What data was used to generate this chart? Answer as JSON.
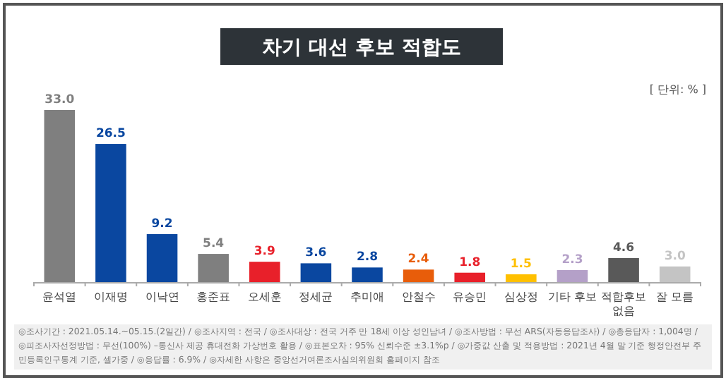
{
  "chart_data": {
    "type": "bar",
    "title": "차기 대선 후보 적합도",
    "categories": [
      "윤석열",
      "이재명",
      "이낙연",
      "홍준표",
      "오세훈",
      "정세균",
      "추미애",
      "안철수",
      "유승민",
      "심상정",
      "기타 후보",
      "적합후보 없음",
      "잘 모름"
    ],
    "values": [
      33.0,
      26.5,
      9.2,
      5.4,
      3.9,
      3.6,
      2.8,
      2.4,
      1.8,
      1.5,
      2.3,
      4.6,
      3.0
    ],
    "value_labels": [
      "33.0",
      "26.5",
      "9.2",
      "5.4",
      "3.9",
      "3.6",
      "2.8",
      "2.4",
      "1.8",
      "1.5",
      "2.3",
      "4.6",
      "3.0"
    ],
    "colors": [
      "#7f7f7f",
      "#0a47a0",
      "#0a47a0",
      "#7f7f7f",
      "#e8202a",
      "#0a47a0",
      "#0a47a0",
      "#e85d0a",
      "#e8202a",
      "#ffc000",
      "#b4a0c8",
      "#595959",
      "#c4c4c4"
    ],
    "annotations": [
      "[ 단위: % ]",
      "◎조사기간 : 2021.05.14.~05.15.(2일간) / ◎조사지역 : 전국 / ◎조사대상 : 전국 거주 만 18세 이상 성인남녀 / ◎조사방법 : 무선 ARS(자동응답조사) / ◎총응답자 : 1,004명 / ◎피조사자선정방법 : 무선(100%) –통신사 제공 휴대전화 가상번호 활용 / ◎표본오차 : 95% 신뢰수준 ±3.1%p / ◎가중값 산출 및 적용방법 : 2021년 4월 말 기준 행정안전부 주민등록인구통계 기준, 셀가중 / ◎응답률 : 6.9% / ◎자세한 사항은 중앙선거여론조사심의위원회 홈페이지 참조"
    ],
    "grid": false
  }
}
